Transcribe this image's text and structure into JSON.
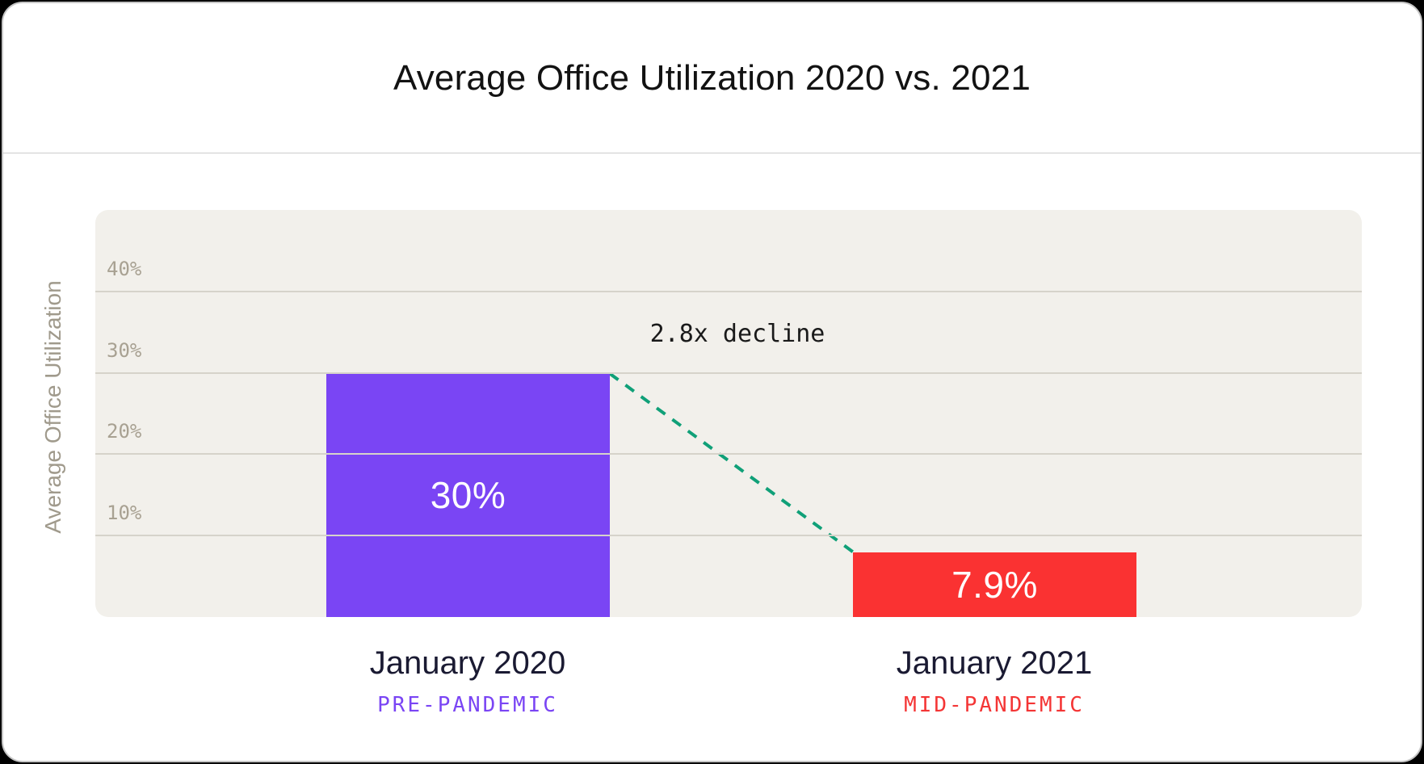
{
  "card": {
    "title": "Average Office Utilization 2020 vs. 2021"
  },
  "chart_data": {
    "type": "bar",
    "title": "Average Office Utilization 2020 vs. 2021",
    "xlabel": "",
    "ylabel": "Average Office Utilization",
    "ylim": [
      0,
      50
    ],
    "yticks": [
      10,
      20,
      30,
      40
    ],
    "ytick_suffix": "%",
    "grid": true,
    "legend_position": "none",
    "categories": [
      "January 2020",
      "January 2021"
    ],
    "sublabels": [
      "PRE-PANDEMIC",
      "MID-PANDEMIC"
    ],
    "values": [
      30,
      7.9
    ],
    "value_labels": [
      "30%",
      "7.9%"
    ],
    "bar_colors": [
      "#7a45f4",
      "#fa3232"
    ],
    "sublabel_colors": [
      "#7a45f4",
      "#f43535"
    ],
    "annotation": {
      "text": "2.8x decline",
      "color": "#1a1a1a",
      "line_color": "#10a078",
      "line_style": "dashed"
    }
  },
  "colors": {
    "page_background": "#000000",
    "card_background": "#ffffff",
    "card_border": "#c5c5c5",
    "plot_background": "#f2f0eb",
    "gridline": "#d6d3ca",
    "tick_text": "#a8a192",
    "axis_title_text": "#a09a8c",
    "category_text": "#1a1a32",
    "title_text": "#121212",
    "bar_value_text": "#ffffff"
  }
}
